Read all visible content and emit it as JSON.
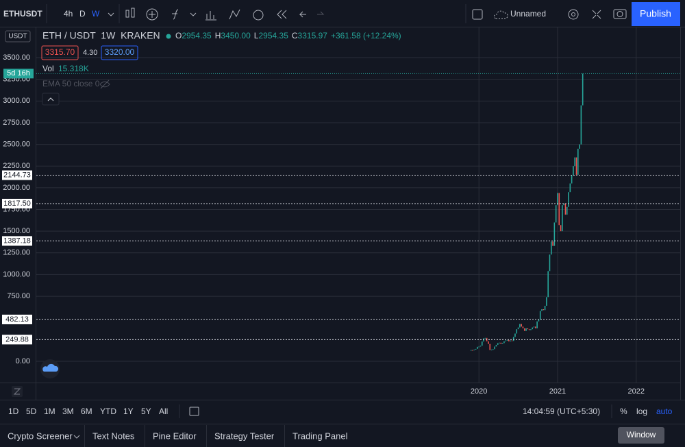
{
  "toolbar": {
    "symbol": "ETHUSDT",
    "intervals": [
      "4h",
      "D",
      "W"
    ],
    "layout_name": "Unnamed",
    "publish": "Publish"
  },
  "legend": {
    "title": "ETH / USDT  1W  KRAKEN",
    "ohlc": [
      {
        "key": "O",
        "value": "2954.35"
      },
      {
        "key": "H",
        "value": "3450.00"
      },
      {
        "key": "L",
        "value": "2954.35"
      },
      {
        "key": "C",
        "value": "3315.97"
      }
    ],
    "change": "+361.58 (+12.24%)",
    "bid": "3315.70",
    "spread": "4.30",
    "ask": "3320.00",
    "volume_label": "Vol",
    "volume": "15.318K",
    "indicator": "EMA 50 close 0"
  },
  "chart": {
    "type": "candlestick",
    "currency": "USDT",
    "countdown": "5d 16h",
    "ylim": [
      -245,
      3848
    ],
    "yticks": [
      {
        "value": 0,
        "label": "0.00"
      },
      {
        "value": 750,
        "label": "750.00"
      },
      {
        "value": 1000,
        "label": "1000.00"
      },
      {
        "value": 1250,
        "label": "1250.00"
      },
      {
        "value": 1500,
        "label": "1500.00"
      },
      {
        "value": 1750,
        "label": "1750.00"
      },
      {
        "value": 2000,
        "label": "2000.00"
      },
      {
        "value": 2250,
        "label": "2250.00"
      },
      {
        "value": 2500,
        "label": "2500.00"
      },
      {
        "value": 2750,
        "label": "2750.00"
      },
      {
        "value": 3000,
        "label": "3000.00"
      },
      {
        "value": 3250,
        "label": "3250.00"
      },
      {
        "value": 3500,
        "label": "3500.00"
      }
    ],
    "xlim": [
      2014.37,
      2022.56
    ],
    "xticks": [
      2020,
      2021,
      2022
    ],
    "levels": [
      {
        "value": 2144.73,
        "label": "2144.73"
      },
      {
        "value": 1817.5,
        "label": "1817.50"
      },
      {
        "value": 1387.18,
        "label": "1387.18"
      },
      {
        "value": 482.13,
        "label": "482.13"
      },
      {
        "value": 249.88,
        "label": "249.88"
      }
    ],
    "last_price": 3315.97,
    "x": [
      2019.9,
      2019.92,
      2019.94,
      2019.96,
      2019.98,
      2020.0,
      2020.02,
      2020.04,
      2020.06,
      2020.08,
      2020.1,
      2020.12,
      2020.14,
      2020.16,
      2020.18,
      2020.2,
      2020.22,
      2020.24,
      2020.26,
      2020.28,
      2020.3,
      2020.32,
      2020.34,
      2020.36,
      2020.38,
      2020.4,
      2020.42,
      2020.44,
      2020.46,
      2020.48,
      2020.5,
      2020.52,
      2020.54,
      2020.56,
      2020.58,
      2020.6,
      2020.62,
      2020.64,
      2020.66,
      2020.68,
      2020.7,
      2020.72,
      2020.74,
      2020.76,
      2020.78,
      2020.8,
      2020.82,
      2020.84,
      2020.86,
      2020.88,
      2020.9,
      2020.92,
      2020.94,
      2020.96,
      2020.98,
      2021.0,
      2021.02,
      2021.04,
      2021.06,
      2021.08,
      2021.1,
      2021.12,
      2021.14,
      2021.16,
      2021.18,
      2021.2,
      2021.22,
      2021.24,
      2021.26,
      2021.28,
      2021.3,
      2021.32
    ],
    "close": [
      130,
      128,
      135,
      143,
      167,
      170,
      180,
      228,
      265,
      270,
      230,
      200,
      130,
      135,
      140,
      170,
      190,
      210,
      215,
      200,
      210,
      230,
      240,
      245,
      230,
      240,
      235,
      280,
      320,
      370,
      390,
      430,
      400,
      380,
      350,
      380,
      370,
      360,
      370,
      390,
      400,
      380,
      460,
      480,
      580,
      600,
      590,
      640,
      740,
      1040,
      1230,
      1380,
      1330,
      1600,
      1800,
      1940,
      1570,
      1500,
      1800,
      1820,
      1690,
      1780,
      1950,
      2050,
      2140,
      2250,
      2350,
      2150,
      2450,
      2500,
      2950,
      3315.97
    ]
  },
  "range_bar": {
    "ranges": [
      "1D",
      "5D",
      "1M",
      "3M",
      "6M",
      "YTD",
      "1Y",
      "5Y",
      "All"
    ],
    "clock": "14:04:59 (UTC+5:30)",
    "percent": "%",
    "log": "log",
    "auto": "auto"
  },
  "bottom_tabs": [
    "Crypto Screener",
    "Text Notes",
    "Pine Editor",
    "Strategy Tester",
    "Trading Panel"
  ],
  "tooltip": "Window"
}
